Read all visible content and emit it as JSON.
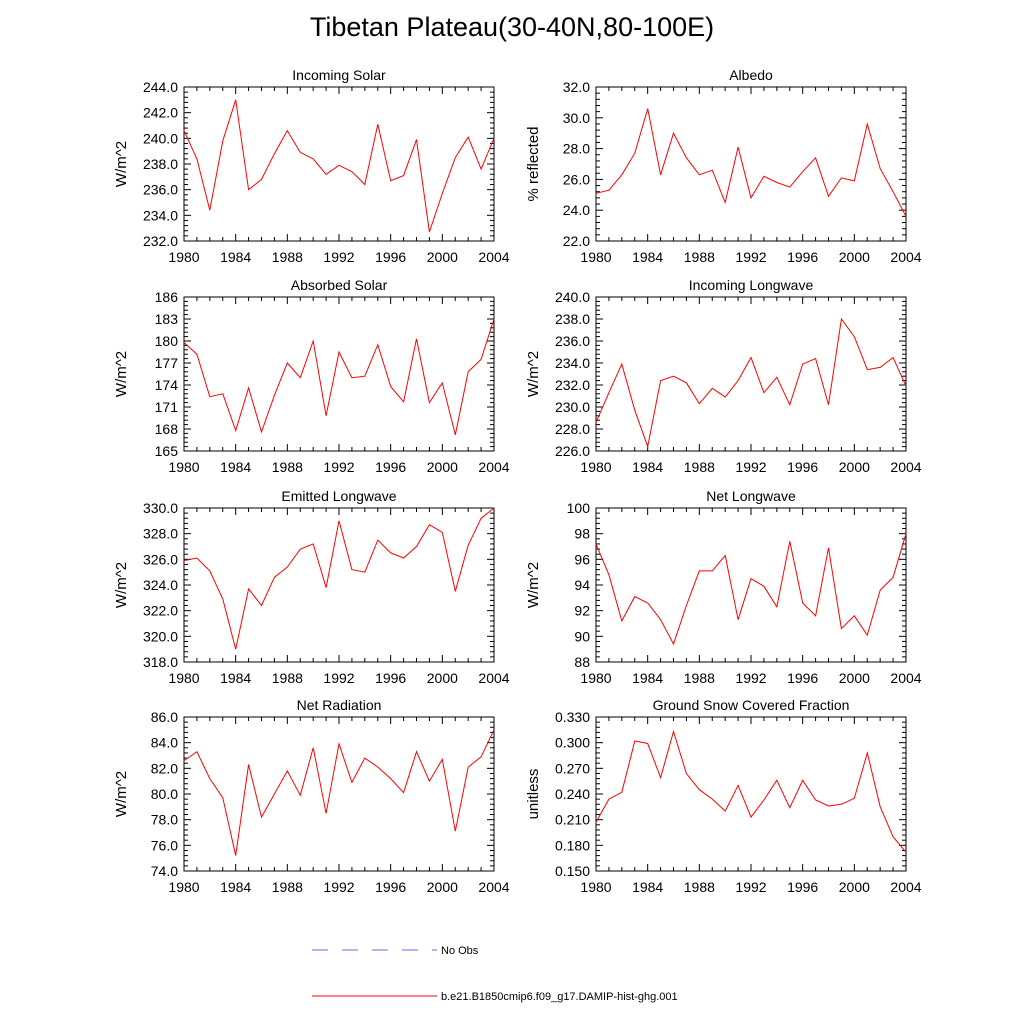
{
  "figure": {
    "title": "Tibetan Plateau(30-40N,80-100E)"
  },
  "legend": {
    "items": [
      {
        "label": "No Obs",
        "color": "#6b6bd6",
        "dash": true
      },
      {
        "label": "b.e21.B1850cmip6.f09_g17.DAMIP-hist-ghg.001",
        "color": "#ff0000",
        "dash": false
      }
    ]
  },
  "chart_data": [
    {
      "type": "line",
      "title": "Incoming Solar",
      "ylabel": "W/m^2",
      "xlim": [
        1980,
        2004
      ],
      "ylim": [
        232.0,
        244.0
      ],
      "xticks": [
        "1980",
        "1984",
        "1988",
        "1992",
        "1996",
        "2000",
        "2004"
      ],
      "yticks": [
        "232.0",
        "234.0",
        "236.0",
        "238.0",
        "240.0",
        "242.0",
        "244.0"
      ],
      "x": [
        1980,
        1981,
        1982,
        1983,
        1984,
        1985,
        1986,
        1987,
        1988,
        1989,
        1990,
        1991,
        1992,
        1993,
        1994,
        1995,
        1996,
        1997,
        1998,
        1999,
        2000,
        2001,
        2002,
        2003,
        2004
      ],
      "series": [
        {
          "color": "#ff0000",
          "values": [
            240.6,
            238.4,
            234.4,
            239.8,
            243.0,
            236.0,
            236.8,
            238.8,
            240.6,
            238.9,
            238.4,
            237.2,
            237.9,
            237.4,
            236.4,
            241.1,
            236.7,
            237.1,
            239.9,
            232.7,
            235.7,
            238.5,
            240.1,
            237.6,
            240.0
          ]
        }
      ]
    },
    {
      "type": "line",
      "title": "Albedo",
      "ylabel": "% reflected",
      "xlim": [
        1980,
        2004
      ],
      "ylim": [
        22.0,
        32.0
      ],
      "xticks": [
        "1980",
        "1984",
        "1988",
        "1992",
        "1996",
        "2000",
        "2004"
      ],
      "yticks": [
        "22.0",
        "24.0",
        "26.0",
        "28.0",
        "30.0",
        "32.0"
      ],
      "x": [
        1980,
        1981,
        1982,
        1983,
        1984,
        1985,
        1986,
        1987,
        1988,
        1989,
        1990,
        1991,
        1992,
        1993,
        1994,
        1995,
        1996,
        1997,
        1998,
        1999,
        2000,
        2001,
        2002,
        2003,
        2004
      ],
      "series": [
        {
          "color": "#ff0000",
          "values": [
            25.1,
            25.3,
            26.3,
            27.7,
            30.6,
            26.3,
            29.0,
            27.4,
            26.3,
            26.6,
            24.5,
            28.1,
            24.8,
            26.2,
            25.8,
            25.5,
            26.5,
            27.4,
            24.9,
            26.1,
            25.9,
            29.6,
            26.7,
            25.2,
            23.6
          ]
        }
      ]
    },
    {
      "type": "line",
      "title": "Absorbed Solar",
      "ylabel": "W/m^2",
      "xlim": [
        1980,
        2004
      ],
      "ylim": [
        165,
        186
      ],
      "xticks": [
        "1980",
        "1984",
        "1988",
        "1992",
        "1996",
        "2000",
        "2004"
      ],
      "yticks": [
        "165",
        "168",
        "171",
        "174",
        "177",
        "180",
        "183",
        "186"
      ],
      "x": [
        1980,
        1981,
        1982,
        1983,
        1984,
        1985,
        1986,
        1987,
        1988,
        1989,
        1990,
        1991,
        1992,
        1993,
        1994,
        1995,
        1996,
        1997,
        1998,
        1999,
        2000,
        2001,
        2002,
        2003,
        2004
      ],
      "series": [
        {
          "color": "#ff0000",
          "values": [
            179.8,
            178.2,
            172.4,
            172.8,
            167.8,
            173.6,
            167.6,
            172.6,
            177.0,
            175.0,
            180.0,
            169.8,
            178.5,
            175.0,
            175.2,
            179.5,
            173.8,
            171.7,
            180.3,
            171.6,
            174.3,
            167.2,
            175.8,
            177.5,
            183.0
          ]
        }
      ]
    },
    {
      "type": "line",
      "title": "Incoming Longwave",
      "ylabel": "W/m^2",
      "xlim": [
        1980,
        2004
      ],
      "ylim": [
        226.0,
        240.0
      ],
      "xticks": [
        "1980",
        "1984",
        "1988",
        "1992",
        "1996",
        "2000",
        "2004"
      ],
      "yticks": [
        "226.0",
        "228.0",
        "230.0",
        "232.0",
        "234.0",
        "236.0",
        "238.0",
        "240.0"
      ],
      "x": [
        1980,
        1981,
        1982,
        1983,
        1984,
        1985,
        1986,
        1987,
        1988,
        1989,
        1990,
        1991,
        1992,
        1993,
        1994,
        1995,
        1996,
        1997,
        1998,
        1999,
        2000,
        2001,
        2002,
        2003,
        2004
      ],
      "series": [
        {
          "color": "#ff0000",
          "values": [
            228.6,
            231.3,
            233.9,
            229.7,
            226.4,
            232.4,
            232.8,
            232.2,
            230.3,
            231.7,
            230.9,
            232.4,
            234.5,
            231.3,
            232.7,
            230.2,
            233.9,
            234.4,
            230.2,
            238.0,
            236.4,
            233.4,
            233.6,
            234.5,
            231.9
          ]
        }
      ]
    },
    {
      "type": "line",
      "title": "Emitted Longwave",
      "ylabel": "W/m^2",
      "xlim": [
        1980,
        2004
      ],
      "ylim": [
        318.0,
        330.0
      ],
      "xticks": [
        "1980",
        "1984",
        "1988",
        "1992",
        "1996",
        "2000",
        "2004"
      ],
      "yticks": [
        "318.0",
        "320.0",
        "322.0",
        "324.0",
        "326.0",
        "328.0",
        "330.0"
      ],
      "x": [
        1980,
        1981,
        1982,
        1983,
        1984,
        1985,
        1986,
        1987,
        1988,
        1989,
        1990,
        1991,
        1992,
        1993,
        1994,
        1995,
        1996,
        1997,
        1998,
        1999,
        2000,
        2001,
        2002,
        2003,
        2004
      ],
      "series": [
        {
          "color": "#ff0000",
          "values": [
            325.9,
            326.1,
            325.1,
            322.9,
            319.0,
            323.7,
            322.4,
            324.6,
            325.4,
            326.8,
            327.2,
            323.8,
            329.0,
            325.2,
            325.0,
            327.5,
            326.5,
            326.1,
            327.0,
            328.7,
            328.1,
            323.5,
            327.1,
            329.2,
            330.0
          ]
        }
      ]
    },
    {
      "type": "line",
      "title": "Net Longwave",
      "ylabel": "W/m^2",
      "xlim": [
        1980,
        2004
      ],
      "ylim": [
        88,
        100
      ],
      "xticks": [
        "1980",
        "1984",
        "1988",
        "1992",
        "1996",
        "2000",
        "2004"
      ],
      "yticks": [
        "88",
        "90",
        "92",
        "94",
        "96",
        "98",
        "100"
      ],
      "x": [
        1980,
        1981,
        1982,
        1983,
        1984,
        1985,
        1986,
        1987,
        1988,
        1989,
        1990,
        1991,
        1992,
        1993,
        1994,
        1995,
        1996,
        1997,
        1998,
        1999,
        2000,
        2001,
        2002,
        2003,
        2004
      ],
      "series": [
        {
          "color": "#ff0000",
          "values": [
            97.2,
            94.8,
            91.2,
            93.1,
            92.6,
            91.3,
            89.4,
            92.4,
            95.1,
            95.1,
            96.3,
            91.3,
            94.5,
            93.9,
            92.3,
            97.4,
            92.6,
            91.6,
            96.9,
            90.6,
            91.6,
            90.1,
            93.6,
            94.6,
            98.0
          ]
        }
      ]
    },
    {
      "type": "line",
      "title": "Net Radiation",
      "ylabel": "W/m^2",
      "xlim": [
        1980,
        2004
      ],
      "ylim": [
        74.0,
        86.0
      ],
      "xticks": [
        "1980",
        "1984",
        "1988",
        "1992",
        "1996",
        "2000",
        "2004"
      ],
      "yticks": [
        "74.0",
        "76.0",
        "78.0",
        "80.0",
        "82.0",
        "84.0",
        "86.0"
      ],
      "x": [
        1980,
        1981,
        1982,
        1983,
        1984,
        1985,
        1986,
        1987,
        1988,
        1989,
        1990,
        1991,
        1992,
        1993,
        1994,
        1995,
        1996,
        1997,
        1998,
        1999,
        2000,
        2001,
        2002,
        2003,
        2004
      ],
      "series": [
        {
          "color": "#ff0000",
          "values": [
            82.6,
            83.3,
            81.2,
            79.7,
            75.2,
            82.3,
            78.2,
            80.0,
            81.8,
            79.9,
            83.6,
            78.5,
            83.9,
            80.9,
            82.8,
            82.1,
            81.2,
            80.1,
            83.3,
            81.0,
            82.7,
            77.1,
            82.1,
            82.9,
            85.0
          ]
        }
      ]
    },
    {
      "type": "line",
      "title": "Ground Snow Covered Fraction",
      "ylabel": "unitless",
      "xlim": [
        1980,
        2004
      ],
      "ylim": [
        0.15,
        0.33
      ],
      "xticks": [
        "1980",
        "1984",
        "1988",
        "1992",
        "1996",
        "2000",
        "2004"
      ],
      "yticks": [
        "0.150",
        "0.180",
        "0.210",
        "0.240",
        "0.270",
        "0.300",
        "0.330"
      ],
      "x": [
        1980,
        1981,
        1982,
        1983,
        1984,
        1985,
        1986,
        1987,
        1988,
        1989,
        1990,
        1991,
        1992,
        1993,
        1994,
        1995,
        1996,
        1997,
        1998,
        1999,
        2000,
        2001,
        2002,
        2003,
        2004
      ],
      "series": [
        {
          "color": "#ff0000",
          "values": [
            0.207,
            0.234,
            0.242,
            0.302,
            0.299,
            0.259,
            0.313,
            0.264,
            0.245,
            0.234,
            0.22,
            0.25,
            0.213,
            0.233,
            0.256,
            0.224,
            0.256,
            0.233,
            0.226,
            0.228,
            0.235,
            0.288,
            0.225,
            0.19,
            0.172
          ]
        }
      ]
    }
  ]
}
